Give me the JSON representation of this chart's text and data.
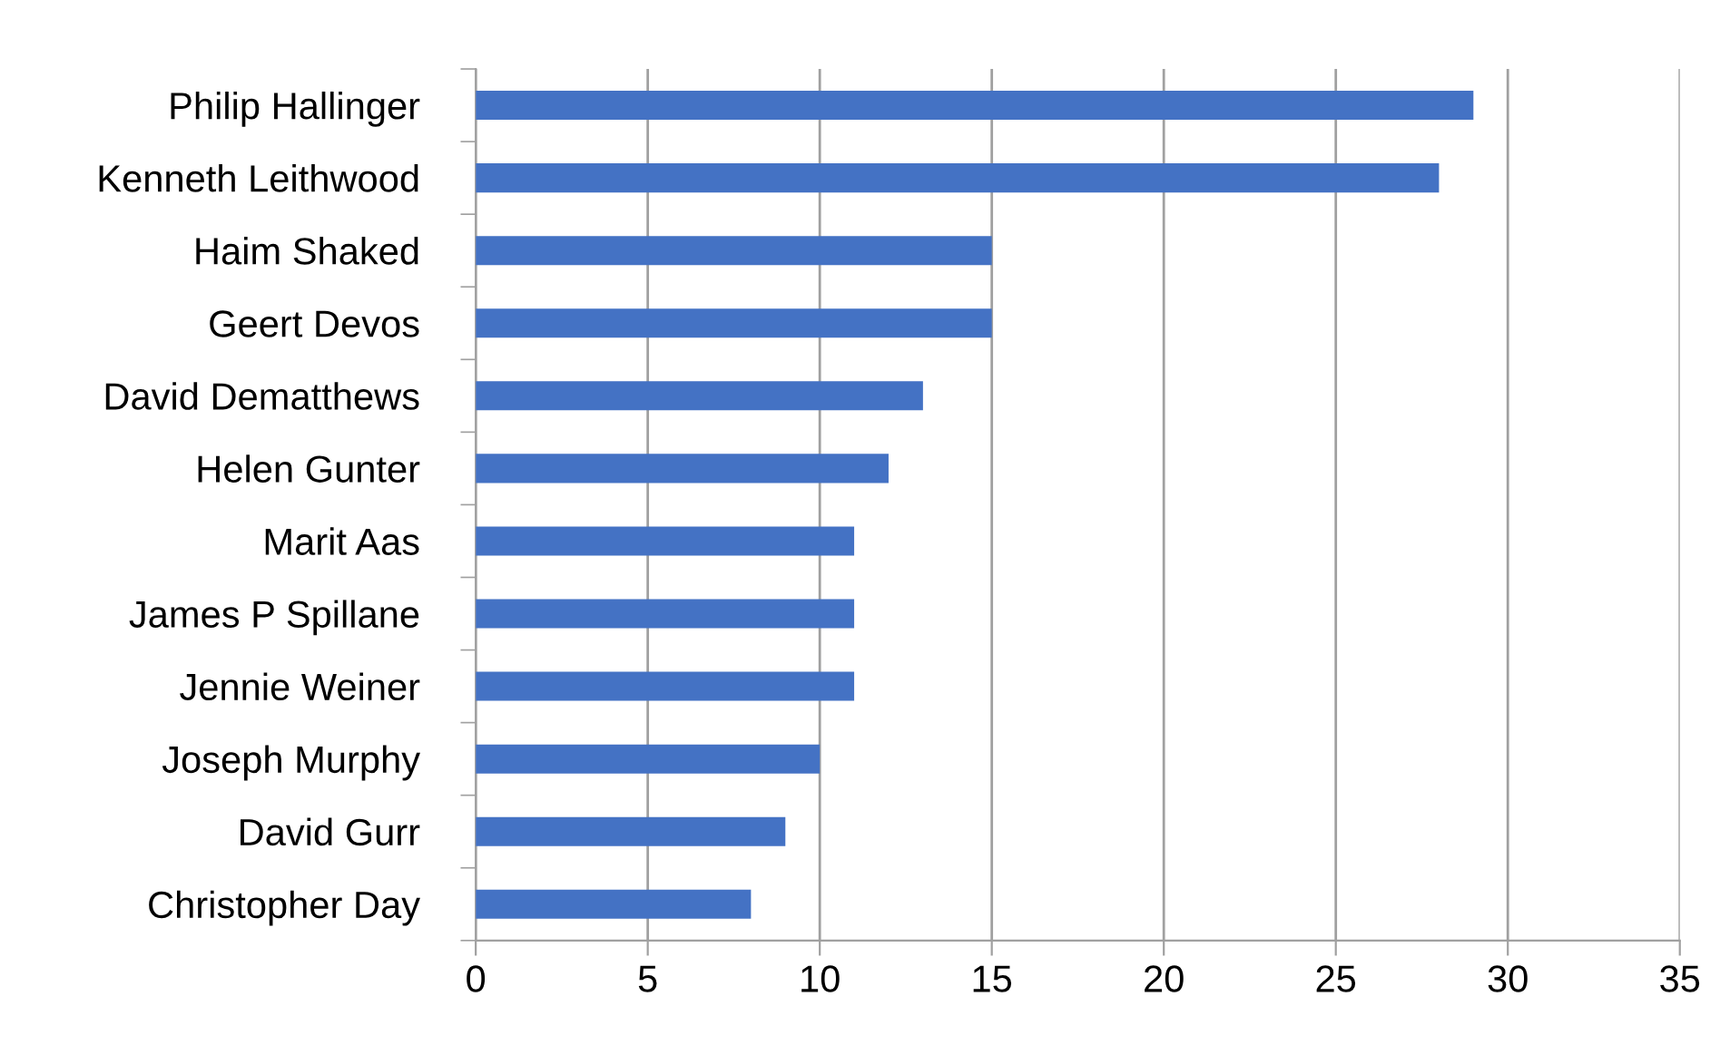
{
  "chart_data": {
    "type": "bar",
    "orientation": "horizontal",
    "categories": [
      "Philip Hallinger",
      "Kenneth Leithwood",
      "Haim Shaked",
      "Geert Devos",
      "David Dematthews",
      "Helen Gunter",
      "Marit Aas",
      "James P Spillane",
      "Jennie Weiner",
      "Joseph Murphy",
      "David Gurr",
      "Christopher Day"
    ],
    "values": [
      29,
      28,
      15,
      15,
      13,
      12,
      11,
      11,
      11,
      10,
      9,
      8
    ],
    "color": "#4472c4",
    "xlim": [
      0,
      35
    ],
    "xticks": [
      0,
      5,
      10,
      15,
      20,
      25,
      30,
      35
    ],
    "grid": "x",
    "legend": false
  }
}
